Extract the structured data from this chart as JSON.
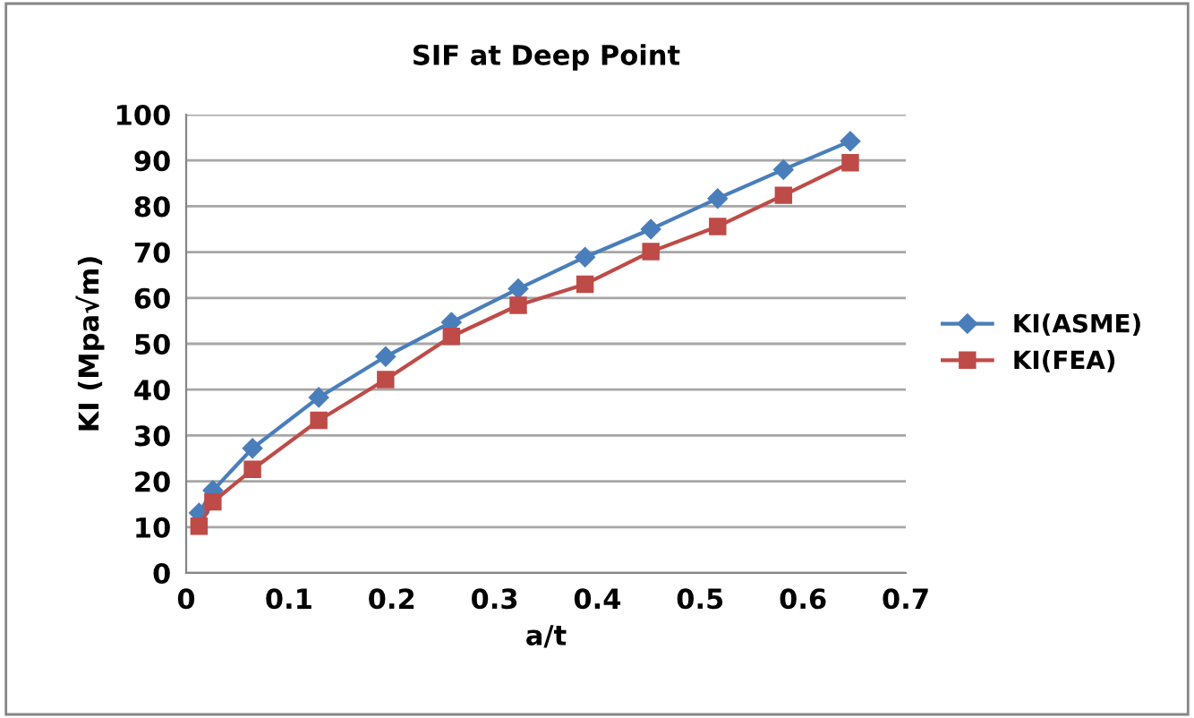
{
  "chart_data": {
    "type": "line",
    "title": "SIF at Deep Point",
    "xlabel": "a/t",
    "ylabel": "KI (Mpa√m)",
    "x": [
      0.0125,
      0.026,
      0.0645,
      0.129,
      0.194,
      0.258,
      0.323,
      0.388,
      0.452,
      0.517,
      0.581,
      0.646
    ],
    "series": [
      {
        "name": "KI(ASME)",
        "color": "#4a7ebb",
        "marker": "diamond",
        "values": [
          13.1,
          18.0,
          27.2,
          38.3,
          47.2,
          54.7,
          62.0,
          68.9,
          75.0,
          81.7,
          88.0,
          94.2
        ]
      },
      {
        "name": "KI(FEA)",
        "color": "#be4b48",
        "marker": "square",
        "values": [
          10.2,
          15.5,
          22.6,
          33.3,
          42.2,
          51.6,
          58.4,
          63.0,
          70.1,
          75.6,
          82.4,
          89.5
        ]
      }
    ],
    "xlim": [
      0,
      0.7
    ],
    "xticks": [
      0,
      0.1,
      0.2,
      0.3,
      0.4,
      0.5,
      0.6,
      0.7
    ],
    "ylim": [
      0,
      100
    ],
    "yticks": [
      0,
      10,
      20,
      30,
      40,
      50,
      60,
      70,
      80,
      90,
      100
    ],
    "grid": "y",
    "legend": "right",
    "line_style": "solid"
  }
}
